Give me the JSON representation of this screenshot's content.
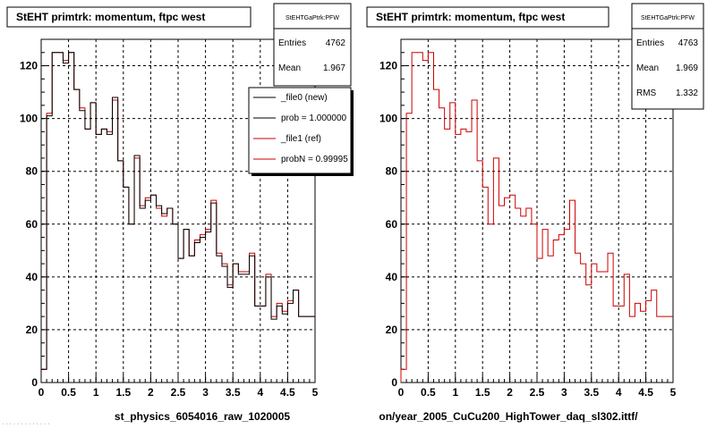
{
  "colors": {
    "new": "#000000",
    "ref": "#cc0000",
    "background": "#ffffff"
  },
  "chart_data": [
    {
      "type": "line",
      "step": true,
      "title": "StEHT primtrk: momentum, ftpc west",
      "xlabel": "st_physics_6054016_raw_1020005",
      "xlim": [
        0,
        5
      ],
      "ylim": [
        0,
        130
      ],
      "xticks": [
        "0",
        "0.5",
        "1",
        "1.5",
        "2",
        "2.5",
        "3",
        "3.5",
        "4",
        "4.5",
        "5"
      ],
      "yticks": [
        "0",
        "20",
        "40",
        "60",
        "80",
        "100",
        "120"
      ],
      "grid": true,
      "stats": {
        "name": "StEHTGaPtrk:PFW",
        "rows": [
          {
            "label": "Entries",
            "value": "4762"
          },
          {
            "label": "Mean",
            "value": "1.967"
          }
        ]
      },
      "legend": {
        "position": "top-right",
        "entries": [
          {
            "label": "_file0 (new)",
            "color": "#000000"
          },
          {
            "label": "prob = 1.000000",
            "color": "#000000"
          },
          {
            "label": "_file1 (ref)",
            "color": "#cc0000"
          },
          {
            "label": "probN = 0.99995",
            "color": "#cc0000"
          }
        ]
      },
      "bin_width": 0.1,
      "series": [
        {
          "name": "_file0 (new)",
          "color": "#000000",
          "values": [
            5,
            101,
            125,
            125,
            121,
            125,
            111,
            103,
            96,
            106,
            94,
            96,
            94,
            108,
            84,
            74,
            60,
            86,
            66,
            69,
            71,
            67,
            64,
            66,
            60,
            47,
            58,
            48,
            53,
            55,
            57,
            68,
            48,
            44,
            36,
            45,
            41,
            41,
            48,
            29,
            29,
            40,
            24,
            29,
            26,
            30,
            35,
            25,
            25,
            25
          ]
        },
        {
          "name": "_file1 (ref)",
          "color": "#cc0000",
          "values": [
            5,
            102,
            125,
            125,
            122,
            125,
            111,
            104,
            96,
            106,
            94,
            96,
            95,
            107,
            84,
            74,
            60,
            85,
            67,
            70,
            71,
            66,
            63,
            66,
            60,
            47,
            58,
            48,
            54,
            56,
            58,
            69,
            49,
            45,
            37,
            45,
            42,
            42,
            49,
            29,
            29,
            41,
            25,
            30,
            27,
            31,
            35,
            25,
            25,
            25
          ]
        }
      ]
    },
    {
      "type": "line",
      "step": true,
      "title": "StEHT primtrk: momentum, ftpc west",
      "xlabel": "on/year_2005_CuCu200_HighTower_daq_sl302.ittf/",
      "xlim": [
        0,
        5
      ],
      "ylim": [
        0,
        130
      ],
      "xticks": [
        "0",
        "0.5",
        "1",
        "1.5",
        "2",
        "2.5",
        "3",
        "3.5",
        "4",
        "4.5",
        "5"
      ],
      "yticks": [
        "0",
        "20",
        "40",
        "60",
        "80",
        "100",
        "120"
      ],
      "grid": true,
      "stats": {
        "name": "StEHTGaPtrk:PFW",
        "rows": [
          {
            "label": "Entries",
            "value": "4763"
          },
          {
            "label": "Mean",
            "value": "1.969"
          },
          {
            "label": "RMS",
            "value": "1.332"
          }
        ]
      },
      "legend": null,
      "bin_width": 0.1,
      "series": [
        {
          "name": "",
          "color": "#cc0000",
          "values": [
            5,
            102,
            125,
            125,
            122,
            125,
            111,
            104,
            96,
            106,
            94,
            96,
            95,
            107,
            84,
            74,
            60,
            85,
            67,
            70,
            71,
            66,
            63,
            66,
            60,
            47,
            58,
            48,
            54,
            56,
            58,
            69,
            49,
            45,
            37,
            45,
            42,
            42,
            49,
            29,
            29,
            41,
            25,
            30,
            27,
            31,
            35,
            25,
            25,
            25
          ]
        }
      ]
    }
  ]
}
